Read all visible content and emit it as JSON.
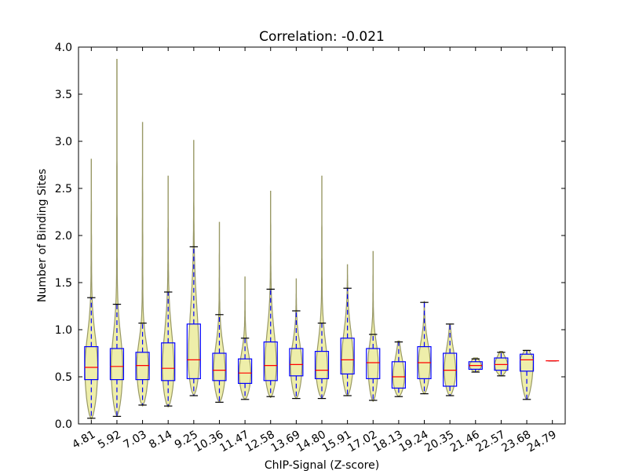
{
  "chart_data": {
    "type": "violin",
    "title": "Correlation: -0.021",
    "xlabel": "ChIP-Signal (Z-score)",
    "ylabel": "Number of Binding Sites",
    "ylim": [
      0,
      4.0
    ],
    "yticks": [
      "0.0",
      "0.5",
      "1.0",
      "1.5",
      "2.0",
      "2.5",
      "3.0",
      "3.5",
      "4.0"
    ],
    "categories": [
      "4.81",
      "5.92",
      "7.03",
      "8.14",
      "9.25",
      "10.36",
      "11.47",
      "12.58",
      "13.69",
      "14.80",
      "15.91",
      "17.02",
      "18.13",
      "19.24",
      "20.35",
      "21.46",
      "22.57",
      "23.68",
      "24.79"
    ],
    "colors": {
      "violin_fill": "#eeeeaa",
      "violin_edge": "#999966",
      "box": "#0000ff",
      "median": "#ff0000",
      "whisker": "#0000ff",
      "cap": "#000000"
    },
    "groups": [
      {
        "min": 0.05,
        "q1": 0.47,
        "median": 0.6,
        "q3": 0.82,
        "whisker_low": 0.06,
        "whisker_high": 1.34,
        "max": 2.81,
        "width": 0.5
      },
      {
        "min": 0.08,
        "q1": 0.47,
        "median": 0.61,
        "q3": 0.8,
        "whisker_low": 0.08,
        "whisker_high": 1.27,
        "max": 3.87,
        "width": 0.45
      },
      {
        "min": 0.19,
        "q1": 0.47,
        "median": 0.62,
        "q3": 0.76,
        "whisker_low": 0.2,
        "whisker_high": 1.07,
        "max": 3.2,
        "width": 0.45
      },
      {
        "min": 0.18,
        "q1": 0.46,
        "median": 0.59,
        "q3": 0.86,
        "whisker_low": 0.19,
        "whisker_high": 1.4,
        "max": 2.63,
        "width": 0.45
      },
      {
        "min": 0.3,
        "q1": 0.48,
        "median": 0.68,
        "q3": 1.06,
        "whisker_low": 0.3,
        "whisker_high": 1.88,
        "max": 3.01,
        "width": 0.42
      },
      {
        "min": 0.23,
        "q1": 0.46,
        "median": 0.57,
        "q3": 0.75,
        "whisker_low": 0.23,
        "whisker_high": 1.16,
        "max": 2.14,
        "width": 0.45
      },
      {
        "min": 0.26,
        "q1": 0.43,
        "median": 0.54,
        "q3": 0.69,
        "whisker_low": 0.26,
        "whisker_high": 0.91,
        "max": 1.56,
        "width": 0.45
      },
      {
        "min": 0.28,
        "q1": 0.46,
        "median": 0.62,
        "q3": 0.87,
        "whisker_low": 0.29,
        "whisker_high": 1.43,
        "max": 2.47,
        "width": 0.45
      },
      {
        "min": 0.27,
        "q1": 0.51,
        "median": 0.63,
        "q3": 0.8,
        "whisker_low": 0.27,
        "whisker_high": 1.2,
        "max": 1.54,
        "width": 0.45
      },
      {
        "min": 0.27,
        "q1": 0.48,
        "median": 0.57,
        "q3": 0.77,
        "whisker_low": 0.27,
        "whisker_high": 1.07,
        "max": 2.63,
        "width": 0.45
      },
      {
        "min": 0.3,
        "q1": 0.53,
        "median": 0.68,
        "q3": 0.91,
        "whisker_low": 0.3,
        "whisker_high": 1.44,
        "max": 1.69,
        "width": 0.45
      },
      {
        "min": 0.24,
        "q1": 0.48,
        "median": 0.65,
        "q3": 0.8,
        "whisker_low": 0.25,
        "whisker_high": 0.95,
        "max": 1.83,
        "width": 0.4
      },
      {
        "min": 0.29,
        "q1": 0.38,
        "median": 0.5,
        "q3": 0.66,
        "whisker_low": 0.29,
        "whisker_high": 0.87,
        "max": 0.88,
        "width": 0.45
      },
      {
        "min": 0.32,
        "q1": 0.48,
        "median": 0.65,
        "q3": 0.82,
        "whisker_low": 0.32,
        "whisker_high": 1.29,
        "max": 1.3,
        "width": 0.45
      },
      {
        "min": 0.3,
        "q1": 0.4,
        "median": 0.57,
        "q3": 0.75,
        "whisker_low": 0.3,
        "whisker_high": 1.06,
        "max": 1.06,
        "width": 0.45
      },
      {
        "min": 0.55,
        "q1": 0.58,
        "median": 0.62,
        "q3": 0.66,
        "whisker_low": 0.55,
        "whisker_high": 0.69,
        "max": 0.7,
        "width": 0.45
      },
      {
        "min": 0.51,
        "q1": 0.57,
        "median": 0.63,
        "q3": 0.7,
        "whisker_low": 0.51,
        "whisker_high": 0.76,
        "max": 0.77,
        "width": 0.5
      },
      {
        "min": 0.26,
        "q1": 0.56,
        "median": 0.68,
        "q3": 0.74,
        "whisker_low": 0.26,
        "whisker_high": 0.78,
        "max": 0.78,
        "width": 0.5
      },
      {
        "min": 0.67,
        "q1": 0.67,
        "median": 0.67,
        "q3": 0.67,
        "whisker_low": 0.67,
        "whisker_high": 0.67,
        "max": 0.67,
        "width": 0.5
      }
    ]
  }
}
